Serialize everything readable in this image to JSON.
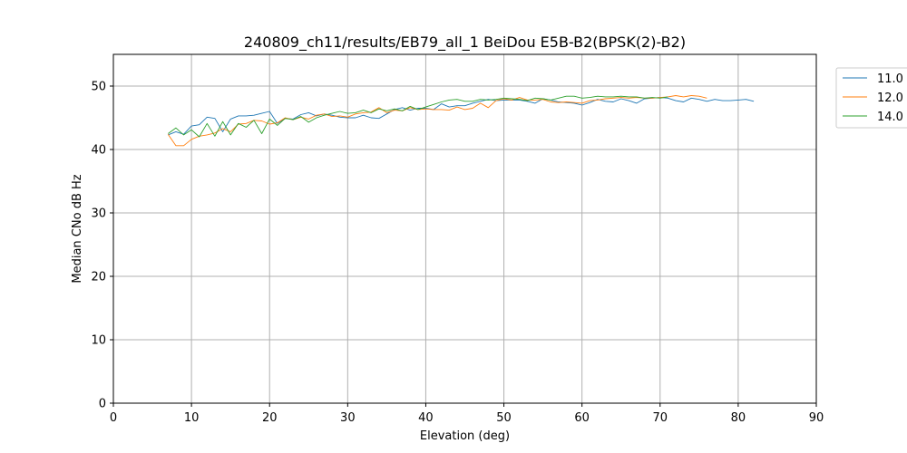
{
  "chart_data": {
    "type": "line",
    "title": "240809_ch11/results/EB79_all_1 BeiDou E5B-B2(BPSK(2)-B2)",
    "xlabel": "Elevation (deg)",
    "ylabel": "Median CNo dB Hz",
    "xlim": [
      0,
      90
    ],
    "ylim": [
      0,
      55
    ],
    "xticks": [
      0,
      10,
      20,
      30,
      40,
      50,
      60,
      70,
      80,
      90
    ],
    "yticks": [
      0,
      10,
      20,
      30,
      40,
      50
    ],
    "xtick_labels": [
      "0",
      "10",
      "20",
      "30",
      "40",
      "50",
      "60",
      "70",
      "80",
      "90"
    ],
    "ytick_labels": [
      "0",
      "10",
      "20",
      "30",
      "40",
      "50"
    ],
    "grid": true,
    "legend_position": "outside-top-right",
    "series": [
      {
        "name": "11.0",
        "color": "#1f77b4",
        "x": [
          7,
          8,
          9,
          10,
          11,
          12,
          13,
          14,
          15,
          16,
          17,
          18,
          19,
          20,
          21,
          22,
          23,
          24,
          25,
          26,
          27,
          28,
          29,
          30,
          31,
          32,
          33,
          34,
          35,
          36,
          37,
          38,
          39,
          40,
          41,
          42,
          43,
          44,
          45,
          46,
          47,
          48,
          49,
          50,
          51,
          52,
          53,
          54,
          55,
          56,
          57,
          58,
          59,
          60,
          61,
          62,
          63,
          64,
          65,
          66,
          67,
          68,
          69,
          70,
          71,
          72,
          73,
          74,
          75,
          76,
          77,
          78,
          79,
          80,
          81,
          82
        ],
        "y": [
          42.3,
          42.8,
          42.4,
          43.7,
          43.9,
          45.1,
          44.9,
          42.8,
          44.8,
          45.3,
          45.3,
          45.4,
          45.7,
          46.0,
          44.1,
          44.9,
          44.8,
          45.5,
          45.8,
          45.3,
          45.6,
          45.4,
          45.1,
          45.0,
          45.0,
          45.4,
          45.0,
          44.9,
          45.6,
          46.3,
          46.6,
          46.2,
          46.5,
          46.5,
          46.3,
          47.2,
          46.7,
          46.9,
          46.9,
          47.3,
          47.6,
          47.9,
          47.7,
          47.8,
          47.8,
          47.8,
          47.6,
          47.3,
          48.0,
          47.8,
          47.5,
          47.4,
          47.3,
          47.0,
          47.4,
          47.9,
          47.6,
          47.5,
          48.0,
          47.7,
          47.3,
          48.0,
          48.1,
          48.2,
          48.1,
          47.7,
          47.5,
          48.1,
          47.9,
          47.6,
          47.9,
          47.7,
          47.7,
          47.8,
          47.9,
          47.6
        ]
      },
      {
        "name": "12.0",
        "color": "#ff7f0e",
        "x": [
          7,
          8,
          9,
          10,
          11,
          12,
          13,
          14,
          15,
          16,
          17,
          18,
          19,
          20,
          21,
          22,
          23,
          24,
          25,
          26,
          27,
          28,
          29,
          30,
          31,
          32,
          33,
          34,
          35,
          36,
          37,
          38,
          39,
          40,
          41,
          42,
          43,
          44,
          45,
          46,
          47,
          48,
          49,
          50,
          51,
          52,
          53,
          54,
          55,
          56,
          57,
          58,
          59,
          60,
          61,
          62,
          63,
          64,
          65,
          66,
          67,
          68,
          69,
          70,
          71,
          72,
          73,
          74,
          75,
          76
        ],
        "y": [
          42.4,
          40.6,
          40.6,
          41.6,
          42.1,
          42.3,
          42.6,
          43.3,
          42.8,
          44.0,
          44.1,
          44.6,
          44.5,
          44.0,
          44.2,
          45.0,
          44.7,
          45.1,
          44.8,
          45.4,
          45.6,
          45.2,
          45.3,
          45.1,
          45.6,
          45.8,
          45.9,
          46.6,
          45.8,
          46.2,
          46.1,
          46.6,
          46.3,
          46.4,
          46.3,
          46.3,
          46.2,
          46.7,
          46.3,
          46.5,
          47.3,
          46.6,
          47.7,
          48.0,
          47.8,
          48.2,
          47.8,
          47.8,
          47.9,
          47.5,
          47.4,
          47.5,
          47.4,
          47.3,
          47.7,
          47.8,
          48.0,
          48.1,
          48.2,
          48.1,
          48.2,
          48.1,
          48.1,
          48.2,
          48.3,
          48.5,
          48.3,
          48.5,
          48.4,
          48.1
        ]
      },
      {
        "name": "14.0",
        "color": "#2ca02c",
        "x": [
          7,
          8,
          9,
          10,
          11,
          12,
          13,
          14,
          15,
          16,
          17,
          18,
          19,
          20,
          21,
          22,
          23,
          24,
          25,
          26,
          27,
          28,
          29,
          30,
          31,
          32,
          33,
          34,
          35,
          36,
          37,
          38,
          39,
          40,
          41,
          42,
          43,
          44,
          45,
          46,
          47,
          48,
          49,
          50,
          51,
          52,
          53,
          54,
          55,
          56,
          57,
          58,
          59,
          60,
          61,
          62,
          63,
          64,
          65,
          66,
          67,
          68,
          69,
          70,
          71
        ],
        "y": [
          42.5,
          43.4,
          42.3,
          43.1,
          42.0,
          44.1,
          42.1,
          44.4,
          42.3,
          44.1,
          43.5,
          44.6,
          42.5,
          44.8,
          43.8,
          44.9,
          44.7,
          45.2,
          44.3,
          45.0,
          45.4,
          45.7,
          46.0,
          45.7,
          45.8,
          46.2,
          45.8,
          46.4,
          46.1,
          46.4,
          46.1,
          46.8,
          46.3,
          46.7,
          47.1,
          47.5,
          47.8,
          47.9,
          47.6,
          47.6,
          47.9,
          47.8,
          47.9,
          48.1,
          48.0,
          47.9,
          47.7,
          48.1,
          48.0,
          47.8,
          48.1,
          48.4,
          48.4,
          48.1,
          48.2,
          48.4,
          48.3,
          48.3,
          48.4,
          48.3,
          48.3,
          48.1,
          48.2,
          48.1,
          48.3
        ]
      }
    ]
  }
}
